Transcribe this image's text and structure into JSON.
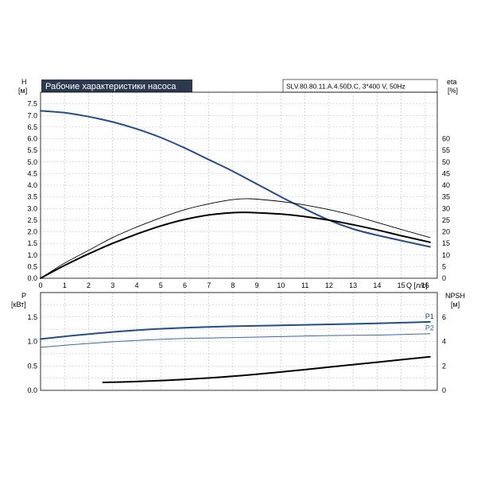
{
  "header": {
    "title": "Рабочие характеристики насоса",
    "model": "SLV.80.80.11.A.4.50D.C, 3*400 V, 50Hz"
  },
  "colors": {
    "blue": "#1f4e8c",
    "blue_light": "#2f6aa8",
    "black": "#000000",
    "grid": "#bdbdbd"
  },
  "chart_data": [
    {
      "type": "line",
      "panel": "top",
      "x_axis": {
        "label": "Q [л/с]",
        "range": [
          0,
          16.5
        ],
        "ticks": [
          0,
          1,
          2,
          3,
          4,
          5,
          6,
          7,
          8,
          9,
          10,
          11,
          12,
          13,
          14,
          15,
          16
        ]
      },
      "y_left": {
        "label_top": "H",
        "label_unit": "[м]",
        "range": [
          0,
          8
        ],
        "ticks": [
          0.0,
          0.5,
          1.0,
          1.5,
          2.0,
          2.5,
          3.0,
          3.5,
          4.0,
          4.5,
          5.0,
          5.5,
          6.0,
          6.5,
          7.0,
          7.5
        ]
      },
      "y_right": {
        "label_top": "eta",
        "label_unit": "[%]",
        "range": [
          0,
          80
        ],
        "ticks": [
          0,
          5,
          10,
          15,
          20,
          25,
          30,
          35,
          40,
          45,
          50,
          55,
          60
        ]
      },
      "grid": true,
      "series": [
        {
          "key": "H",
          "axis": "left",
          "color": "#1f4e8c",
          "width": 2,
          "x": [
            0,
            1,
            2,
            3,
            4,
            5,
            6,
            7,
            8,
            9,
            10,
            11,
            12,
            13,
            14,
            15,
            16.2
          ],
          "y": [
            7.2,
            7.12,
            6.95,
            6.72,
            6.42,
            6.05,
            5.6,
            5.1,
            4.6,
            4.05,
            3.5,
            2.98,
            2.5,
            2.12,
            1.85,
            1.62,
            1.35
          ]
        },
        {
          "key": "eta1",
          "axis": "right",
          "color": "#000000",
          "width": 0.9,
          "x": [
            0,
            1,
            2,
            3,
            4,
            5,
            6,
            7,
            8,
            8.7,
            10,
            11,
            12,
            13,
            14,
            15,
            16.2
          ],
          "y": [
            0,
            6.5,
            12,
            17.5,
            22,
            26,
            29.5,
            32,
            33.8,
            34.2,
            33,
            31.5,
            29.5,
            27,
            24,
            21,
            17.5
          ]
        },
        {
          "key": "eta2",
          "axis": "right",
          "color": "#000000",
          "width": 2,
          "x": [
            0,
            1,
            2,
            3,
            4,
            5,
            6,
            7,
            8,
            8.7,
            10,
            11,
            12,
            13,
            14,
            15,
            16.2
          ],
          "y": [
            0,
            5.5,
            10.5,
            15,
            19,
            22.5,
            25.3,
            27.2,
            28.2,
            28.3,
            27.6,
            26.5,
            25,
            23,
            20.8,
            18.3,
            15.5
          ]
        }
      ]
    },
    {
      "type": "line",
      "panel": "bottom",
      "x_axis": {
        "range": [
          0,
          16.5
        ],
        "ticks": [
          0,
          1,
          2,
          3,
          4,
          5,
          6,
          7,
          8,
          9,
          10,
          11,
          12,
          13,
          14,
          15,
          16
        ]
      },
      "y_left": {
        "label_top": "P",
        "label_unit": "[кВт]",
        "range": [
          0,
          2
        ],
        "ticks": [
          0.0,
          0.5,
          1.0,
          1.5
        ],
        "tick_labels": [
          "0.0",
          "0.5",
          "1.0",
          "1.5"
        ]
      },
      "y_right": {
        "label_top": "NPSH",
        "label_unit": "[м]",
        "range": [
          0,
          8
        ],
        "ticks": [
          0,
          2,
          4,
          6
        ],
        "tick_labels": [
          "0",
          "2",
          "4",
          "6"
        ]
      },
      "grid": true,
      "series": [
        {
          "key": "P1",
          "name": "P1",
          "axis": "left",
          "color": "#1f4e8c",
          "width": 2,
          "x": [
            0,
            2,
            4,
            6,
            8,
            10,
            12,
            14,
            16.2
          ],
          "y": [
            1.05,
            1.15,
            1.23,
            1.28,
            1.31,
            1.33,
            1.35,
            1.37,
            1.4
          ]
        },
        {
          "key": "P2",
          "name": "P2",
          "axis": "left",
          "color": "#2f6aa8",
          "width": 1,
          "x": [
            0,
            2,
            4,
            6,
            8,
            10,
            12,
            14,
            16.2
          ],
          "y": [
            0.88,
            0.96,
            1.02,
            1.06,
            1.08,
            1.1,
            1.12,
            1.13,
            1.16
          ]
        },
        {
          "key": "NPSH",
          "axis": "right",
          "color": "#000000",
          "width": 2,
          "x": [
            2.6,
            4,
            6,
            8,
            10,
            12,
            14,
            16.2
          ],
          "y": [
            0.65,
            0.72,
            0.9,
            1.15,
            1.5,
            1.9,
            2.3,
            2.75
          ]
        }
      ]
    }
  ]
}
